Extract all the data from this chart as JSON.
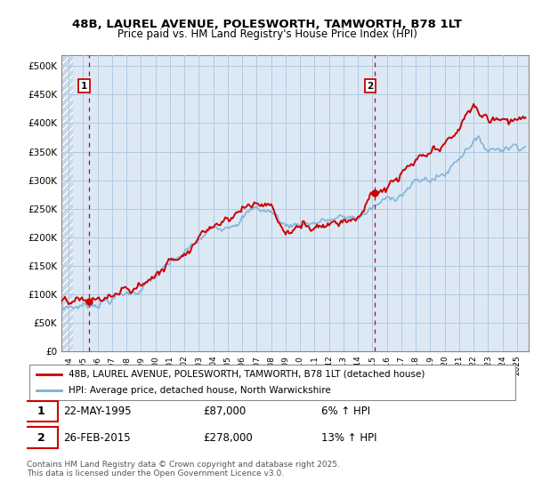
{
  "title_line1": "48B, LAUREL AVENUE, POLESWORTH, TAMWORTH, B78 1LT",
  "title_line2": "Price paid vs. HM Land Registry's House Price Index (HPI)",
  "ylim": [
    0,
    520000
  ],
  "yticks": [
    0,
    50000,
    100000,
    150000,
    200000,
    250000,
    300000,
    350000,
    400000,
    450000,
    500000
  ],
  "ytick_labels": [
    "£0",
    "£50K",
    "£100K",
    "£150K",
    "£200K",
    "£250K",
    "£300K",
    "£350K",
    "£400K",
    "£450K",
    "£500K"
  ],
  "hpi_color": "#7bafd4",
  "price_color": "#cc0000",
  "bg_color": "#dce9f5",
  "hatch_color": "#c8d8e8",
  "grid_color": "#b0c8e0",
  "vline_color": "#cc0000",
  "annotation1": {
    "label": "1",
    "date": "22-MAY-1995",
    "price": "£87,000",
    "hpi": "6% ↑ HPI"
  },
  "annotation2": {
    "label": "2",
    "date": "26-FEB-2015",
    "price": "£278,000",
    "hpi": "13% ↑ HPI"
  },
  "legend_entry1": "48B, LAUREL AVENUE, POLESWORTH, TAMWORTH, B78 1LT (detached house)",
  "legend_entry2": "HPI: Average price, detached house, North Warwickshire",
  "footer": "Contains HM Land Registry data © Crown copyright and database right 2025.\nThis data is licensed under the Open Government Licence v3.0.",
  "vline1_x": 1995.38,
  "vline2_x": 2015.15,
  "point1_x": 1995.38,
  "point1_y": 87000,
  "point2_x": 2015.15,
  "point2_y": 278000,
  "xlim": [
    1993.5,
    2025.8
  ],
  "xstart": 1993,
  "xend": 2025
}
